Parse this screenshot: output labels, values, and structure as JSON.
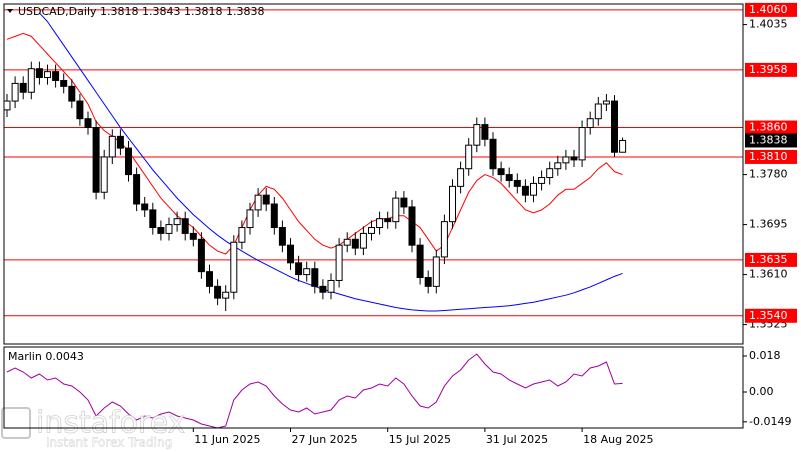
{
  "chart_data": [
    {
      "type": "candlestick",
      "title": "USDCAD,Daily  1.3818 1.3843 1.3818 1.3838",
      "categories": [
        null,
        null,
        null,
        null,
        null,
        null,
        null,
        null,
        null,
        null,
        null,
        null,
        null,
        null,
        null,
        null,
        null,
        null,
        null,
        null,
        null,
        null,
        null,
        "11 Jun 2025",
        null,
        null,
        null,
        null,
        null,
        null,
        null,
        null,
        null,
        null,
        null,
        "27 Jun 2025",
        null,
        null,
        null,
        null,
        null,
        null,
        null,
        null,
        null,
        null,
        null,
        "15 Jul 2025",
        null,
        null,
        null,
        null,
        null,
        null,
        null,
        null,
        null,
        null,
        null,
        "31 Jul 2025",
        null,
        null,
        null,
        null,
        null,
        null,
        null,
        null,
        null,
        null,
        null,
        "18 Aug 2025",
        null,
        null,
        null,
        null,
        null
      ],
      "open": [
        1.389,
        1.3905,
        1.3935,
        1.392,
        1.396,
        1.3945,
        1.3955,
        1.394,
        1.393,
        1.3905,
        1.3875,
        1.386,
        1.375,
        1.381,
        1.3845,
        1.3825,
        1.378,
        1.373,
        1.372,
        1.369,
        1.368,
        1.3695,
        1.3705,
        1.368,
        1.367,
        1.3615,
        1.359,
        1.357,
        1.358,
        1.3665,
        1.369,
        1.372,
        1.3745,
        1.373,
        1.369,
        1.366,
        1.363,
        1.361,
        1.362,
        1.359,
        1.358,
        1.36,
        1.366,
        1.367,
        1.3655,
        1.368,
        1.369,
        1.3705,
        1.37,
        1.374,
        1.3725,
        1.366,
        1.3605,
        1.359,
        1.364,
        1.37,
        1.376,
        1.379,
        1.383,
        1.3865,
        1.384,
        1.379,
        1.378,
        1.377,
        1.376,
        1.3745,
        1.3765,
        1.3775,
        1.379,
        1.38,
        1.381,
        1.3805,
        1.386,
        1.3875,
        1.39,
        1.3905,
        1.3818
      ],
      "high": [
        1.3917,
        1.3947,
        1.3947,
        1.3972,
        1.3972,
        1.3967,
        1.3967,
        1.3952,
        1.3942,
        1.3917,
        1.3887,
        1.3872,
        1.3822,
        1.3857,
        1.3857,
        1.3837,
        1.3792,
        1.3742,
        1.3732,
        1.3702,
        1.3707,
        1.3717,
        1.3717,
        1.3692,
        1.3682,
        1.3627,
        1.3602,
        1.3592,
        1.3677,
        1.3702,
        1.3732,
        1.3757,
        1.3757,
        1.3742,
        1.3702,
        1.3672,
        1.3642,
        1.3632,
        1.3632,
        1.3602,
        1.3612,
        1.3672,
        1.3682,
        1.3682,
        1.3692,
        1.3702,
        1.3717,
        1.3717,
        1.3752,
        1.3752,
        1.3737,
        1.3672,
        1.3617,
        1.3652,
        1.3712,
        1.3772,
        1.3802,
        1.3842,
        1.3877,
        1.3877,
        1.3852,
        1.3802,
        1.3792,
        1.3782,
        1.3772,
        1.3777,
        1.3787,
        1.3802,
        1.3812,
        1.3822,
        1.3822,
        1.3872,
        1.3887,
        1.3912,
        1.3917,
        1.3915,
        1.3843
      ],
      "low": [
        1.3878,
        1.3893,
        1.3908,
        1.3908,
        1.3933,
        1.3933,
        1.3928,
        1.3918,
        1.3893,
        1.3863,
        1.3848,
        1.3738,
        1.3738,
        1.3798,
        1.3813,
        1.3768,
        1.3718,
        1.3708,
        1.3678,
        1.3668,
        1.3668,
        1.3683,
        1.3668,
        1.3658,
        1.3603,
        1.3578,
        1.3558,
        1.3548,
        1.3568,
        1.3653,
        1.3678,
        1.3708,
        1.3718,
        1.3678,
        1.3648,
        1.3618,
        1.3598,
        1.3598,
        1.3578,
        1.3568,
        1.3568,
        1.3588,
        1.3648,
        1.3643,
        1.3643,
        1.3668,
        1.3678,
        1.3688,
        1.3688,
        1.3713,
        1.3648,
        1.3593,
        1.3578,
        1.3578,
        1.3628,
        1.3688,
        1.3748,
        1.3778,
        1.3818,
        1.3828,
        1.3778,
        1.3768,
        1.3758,
        1.3748,
        1.3733,
        1.3733,
        1.3753,
        1.3763,
        1.3778,
        1.3788,
        1.3793,
        1.3793,
        1.3848,
        1.3863,
        1.3888,
        1.381,
        1.3818
      ],
      "close": [
        1.3905,
        1.3935,
        1.392,
        1.396,
        1.3945,
        1.3955,
        1.394,
        1.393,
        1.3905,
        1.3875,
        1.386,
        1.375,
        1.381,
        1.3845,
        1.3825,
        1.378,
        1.373,
        1.372,
        1.369,
        1.368,
        1.3695,
        1.3705,
        1.368,
        1.367,
        1.3615,
        1.359,
        1.357,
        1.358,
        1.3665,
        1.369,
        1.372,
        1.3745,
        1.373,
        1.369,
        1.366,
        1.363,
        1.361,
        1.362,
        1.359,
        1.358,
        1.36,
        1.366,
        1.367,
        1.3655,
        1.368,
        1.369,
        1.3705,
        1.37,
        1.374,
        1.3725,
        1.366,
        1.3605,
        1.359,
        1.364,
        1.37,
        1.376,
        1.379,
        1.383,
        1.3865,
        1.384,
        1.379,
        1.378,
        1.377,
        1.376,
        1.3745,
        1.3765,
        1.3775,
        1.379,
        1.38,
        1.381,
        1.3805,
        1.386,
        1.3875,
        1.39,
        1.3905,
        1.3818,
        1.3838
      ],
      "up_color": "#ffffff",
      "down_color": "#000000",
      "series": [
        {
          "color": "#ff0000",
          "values": [
            1.401,
            1.4015,
            1.402,
            1.4015,
            1.4,
            1.3985,
            1.397,
            1.3955,
            1.394,
            1.392,
            1.39,
            1.387,
            1.3855,
            1.3845,
            1.3835,
            1.382,
            1.38,
            1.378,
            1.376,
            1.374,
            1.3725,
            1.371,
            1.37,
            1.369,
            1.3675,
            1.366,
            1.365,
            1.3645,
            1.366,
            1.369,
            1.372,
            1.3745,
            1.376,
            1.3755,
            1.374,
            1.372,
            1.37,
            1.3685,
            1.367,
            1.366,
            1.3655,
            1.366,
            1.367,
            1.368,
            1.369,
            1.37,
            1.3705,
            1.3705,
            1.371,
            1.371,
            1.37,
            1.369,
            1.367,
            1.365,
            1.366,
            1.369,
            1.372,
            1.375,
            1.377,
            1.378,
            1.3775,
            1.3765,
            1.375,
            1.3735,
            1.372,
            1.3715,
            1.372,
            1.373,
            1.3745,
            1.3755,
            1.3755,
            1.3765,
            1.3775,
            1.379,
            1.38,
            1.3785,
            1.378
          ]
        },
        {
          "color": "#0000ff",
          "values": [
            null,
            null,
            null,
            null,
            1.4055,
            1.404,
            1.402,
            1.4,
            1.398,
            1.396,
            1.394,
            1.392,
            1.39,
            1.388,
            1.386,
            1.3842,
            1.3824,
            1.3806,
            1.3788,
            1.3772,
            1.3756,
            1.374,
            1.3726,
            1.3712,
            1.37,
            1.3688,
            1.3677,
            1.3667,
            1.3658,
            1.365,
            1.3642,
            1.3634,
            1.3627,
            1.362,
            1.3613,
            1.3606,
            1.36,
            1.3595,
            1.359,
            1.3585,
            1.3581,
            1.3577,
            1.3573,
            1.3569,
            1.3566,
            1.3563,
            1.356,
            1.3557,
            1.3554,
            1.3552,
            1.355,
            1.3549,
            1.3548,
            1.3548,
            1.3549,
            1.355,
            1.3551,
            1.3552,
            1.3553,
            1.3554,
            1.3555,
            1.3556,
            1.3557,
            1.3559,
            1.3561,
            1.3563,
            1.3566,
            1.3569,
            1.3572,
            1.3575,
            1.3579,
            1.3584,
            1.3589,
            1.3595,
            1.3601,
            1.3607,
            1.3612
          ]
        }
      ],
      "levels": [
        {
          "value": 1.406,
          "label": "1.4060"
        },
        1.3958,
        {
          "value": 1.386,
          "label": "1.3860"
        },
        {
          "value": 1.381,
          "label": "1.3810"
        },
        1.3635,
        {
          "value": 1.354,
          "label": "1.3540"
        }
      ],
      "level_color": "#ff0000",
      "ylim": [
        1.3492,
        1.407
      ],
      "yticks": [
        1.4035,
        {
          "value": 1.378,
          "label": "1.3780"
        },
        1.3695,
        {
          "value": 1.361,
          "label": "1.3610"
        },
        1.3525
      ]
    },
    {
      "type": "line",
      "title": "Marlin 0.0043",
      "color": "#a000a0",
      "values": [
        0.01,
        0.012,
        0.01,
        0.007,
        0.009,
        0.006,
        0.007,
        0.004,
        0.003,
        0.0,
        -0.004,
        -0.012,
        -0.008,
        -0.005,
        -0.007,
        -0.011,
        -0.014,
        -0.012,
        -0.013,
        -0.011,
        -0.01,
        -0.012,
        -0.013,
        -0.014,
        -0.016,
        -0.017,
        -0.018,
        -0.017,
        -0.004,
        0.001,
        0.004,
        0.005,
        0.003,
        -0.002,
        -0.006,
        -0.009,
        -0.01,
        -0.008,
        -0.011,
        -0.01,
        -0.009,
        -0.004,
        -0.002,
        -0.003,
        0.001,
        0.002,
        0.004,
        0.003,
        0.007,
        0.004,
        -0.002,
        -0.007,
        -0.008,
        -0.005,
        0.003,
        0.008,
        0.011,
        0.016,
        0.019,
        0.014,
        0.01,
        0.009,
        0.006,
        0.004,
        0.002,
        0.004,
        0.005,
        0.006,
        0.003,
        0.005,
        0.009,
        0.008,
        0.012,
        0.013,
        0.015,
        0.004,
        0.0043
      ],
      "ylim": [
        -0.018,
        0.0225
      ],
      "yticks": [
        0.018,
        {
          "value": 0,
          "label": "0.00"
        },
        -0.0149
      ]
    }
  ],
  "watermark": {
    "brand": "instaforex",
    "tagline": "Instant Forex Trading"
  }
}
